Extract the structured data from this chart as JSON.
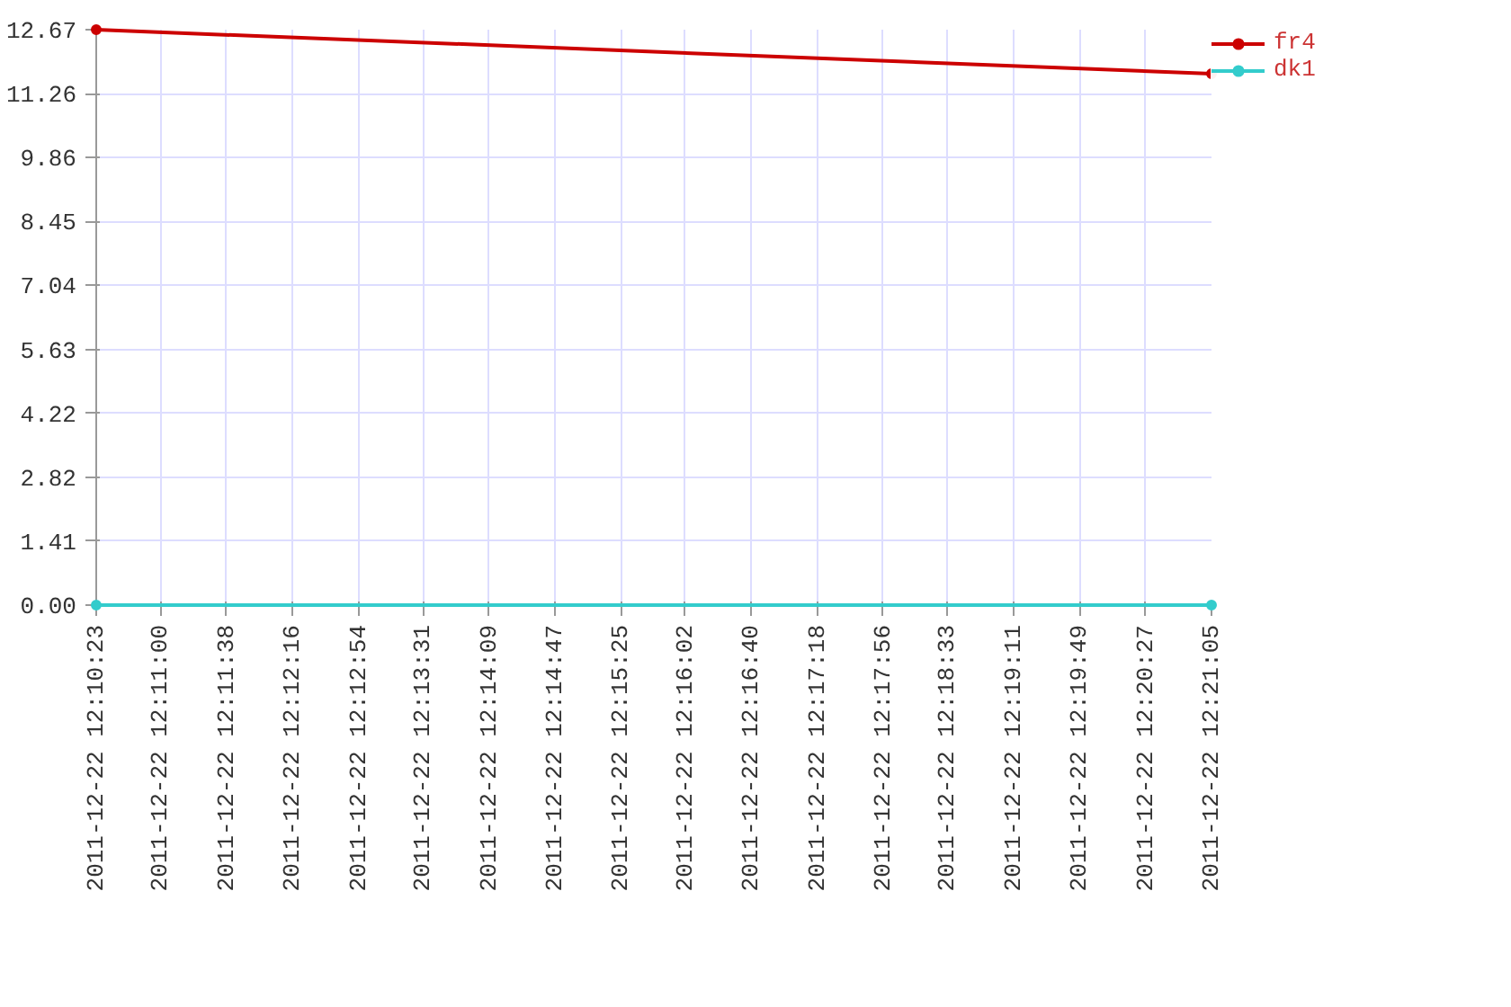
{
  "chart_data": {
    "type": "line",
    "x": [
      "2011-12-22T12:10:23",
      "2011-12-22T12:21:05"
    ],
    "series": [
      {
        "name": "fr4",
        "color": "#cc0000",
        "values": [
          12.67,
          11.7
        ]
      },
      {
        "name": "dk1",
        "color": "#33cccc",
        "values": [
          0,
          0
        ]
      }
    ],
    "xlim": [
      "2011-12-22T12:10:23",
      "2011-12-22T12:21:05"
    ],
    "xticks": [
      {
        "value": "2011-12-22T12:10:23",
        "label": "2011-12-22 12:10:23"
      },
      {
        "value": "2011-12-22T12:11:00",
        "label": "2011-12-22 12:11:00"
      },
      {
        "value": "2011-12-22T12:11:38",
        "label": "2011-12-22 12:11:38"
      },
      {
        "value": "2011-12-22T12:12:16",
        "label": "2011-12-22 12:12:16"
      },
      {
        "value": "2011-12-22T12:12:54",
        "label": "2011-12-22 12:12:54"
      },
      {
        "value": "2011-12-22T12:13:31",
        "label": "2011-12-22 12:13:31"
      },
      {
        "value": "2011-12-22T12:14:09",
        "label": "2011-12-22 12:14:09"
      },
      {
        "value": "2011-12-22T12:14:47",
        "label": "2011-12-22 12:14:47"
      },
      {
        "value": "2011-12-22T12:15:25",
        "label": "2011-12-22 12:15:25"
      },
      {
        "value": "2011-12-22T12:16:02",
        "label": "2011-12-22 12:16:02"
      },
      {
        "value": "2011-12-22T12:16:40",
        "label": "2011-12-22 12:16:40"
      },
      {
        "value": "2011-12-22T12:17:18",
        "label": "2011-12-22 12:17:18"
      },
      {
        "value": "2011-12-22T12:17:56",
        "label": "2011-12-22 12:17:56"
      },
      {
        "value": "2011-12-22T12:18:33",
        "label": "2011-12-22 12:18:33"
      },
      {
        "value": "2011-12-22T12:19:11",
        "label": "2011-12-22 12:19:11"
      },
      {
        "value": "2011-12-22T12:19:49",
        "label": "2011-12-22 12:19:49"
      },
      {
        "value": "2011-12-22T12:20:27",
        "label": "2011-12-22 12:20:27"
      },
      {
        "value": "2011-12-22T12:21:05",
        "label": "2011-12-22 12:21:05"
      }
    ],
    "ylim": [
      0,
      12.67
    ],
    "yticks": [
      {
        "value": 0,
        "label": "0.00"
      },
      1.41,
      2.82,
      4.22,
      5.63,
      7.04,
      8.45,
      9.86,
      11.26,
      12.67
    ],
    "grid": true,
    "legend": "top right",
    "marker": "circle",
    "line_style": "solid"
  }
}
